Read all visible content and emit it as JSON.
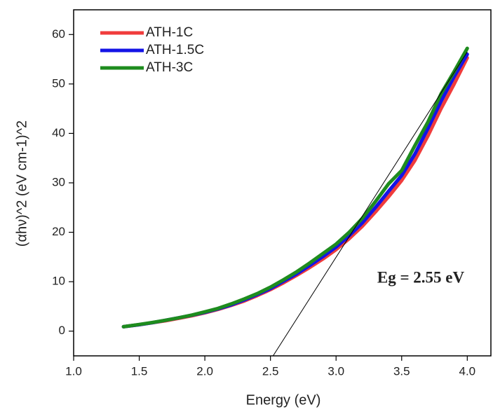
{
  "chart_data": {
    "type": "line",
    "xlabel": "Energy (eV)",
    "ylabel": "(αhν)^2 (eV cm-1)^2",
    "x": [
      1.38,
      1.5,
      1.6,
      1.7,
      1.8,
      1.9,
      2.0,
      2.1,
      2.2,
      2.3,
      2.4,
      2.5,
      2.6,
      2.7,
      2.8,
      2.9,
      3.0,
      3.1,
      3.2,
      3.3,
      3.4,
      3.5,
      3.6,
      3.7,
      3.8,
      3.9,
      4.0
    ],
    "series": [
      {
        "name": "ATH-1C",
        "color": "#f03c3c",
        "values": [
          0.9,
          1.3,
          1.7,
          2.1,
          2.6,
          3.1,
          3.7,
          4.4,
          5.2,
          6.1,
          7.2,
          8.4,
          9.8,
          11.3,
          12.9,
          14.6,
          16.5,
          18.7,
          21.2,
          24.1,
          27.2,
          30.5,
          34.5,
          39.5,
          45,
          50,
          55.3
        ]
      },
      {
        "name": "ATH-1.5C",
        "color": "#1414e6",
        "values": [
          0.9,
          1.3,
          1.7,
          2.2,
          2.7,
          3.2,
          3.8,
          4.5,
          5.3,
          6.3,
          7.4,
          8.6,
          10.1,
          11.6,
          13.3,
          15.1,
          17.0,
          19.3,
          21.9,
          25.0,
          28.3,
          31.5,
          35.8,
          41,
          46.5,
          51.5,
          56
        ]
      },
      {
        "name": "ATH-3C",
        "color": "#1e8c1e",
        "values": [
          0.9,
          1.35,
          1.75,
          2.2,
          2.7,
          3.25,
          3.9,
          4.6,
          5.5,
          6.5,
          7.6,
          8.9,
          10.4,
          12.0,
          13.8,
          15.7,
          17.6,
          20.0,
          22.8,
          26.2,
          29.8,
          32.5,
          37.5,
          42.3,
          48,
          52.5,
          57.2
        ]
      }
    ],
    "tangent": {
      "x": [
        2.52,
        4.0
      ],
      "y": [
        -5,
        56.5
      ]
    },
    "annotation": "Eg = 2.55 eV",
    "xlim": [
      1.0,
      4.18
    ],
    "ylim": [
      -5,
      65
    ],
    "xticks": [
      {
        "value": 1,
        "label": "1.0"
      },
      {
        "value": 1.5,
        "label": "1.5"
      },
      {
        "value": 2,
        "label": "2.0"
      },
      {
        "value": 2.5,
        "label": "2.5"
      },
      {
        "value": 3,
        "label": "3.0"
      },
      {
        "value": 3.5,
        "label": "3.5"
      },
      {
        "value": 4,
        "label": "4.0"
      }
    ],
    "yticks": [
      0,
      10,
      20,
      30,
      40,
      50,
      60
    ],
    "legend": "upper-left"
  }
}
